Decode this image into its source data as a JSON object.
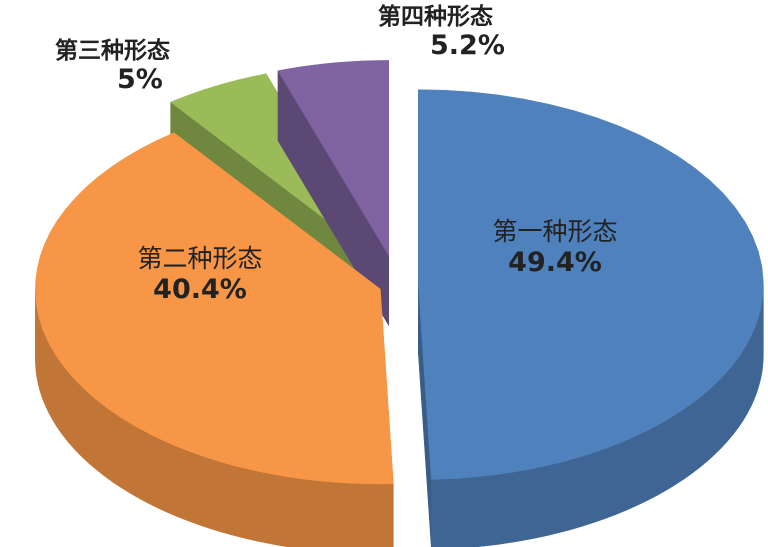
{
  "chart_data": {
    "type": "pie",
    "style": "3d-exploded",
    "categories": [
      "第一种形态",
      "第二种形态",
      "第三种形态",
      "第四种形态"
    ],
    "values": [
      49.4,
      40.4,
      5,
      5.2
    ],
    "value_labels": [
      "49.4%",
      "40.4%",
      "5%",
      "5.2%"
    ],
    "colors": [
      "#4F81BD",
      "#F79646",
      "#9BBB59",
      "#8064A2"
    ],
    "legend": "none"
  }
}
